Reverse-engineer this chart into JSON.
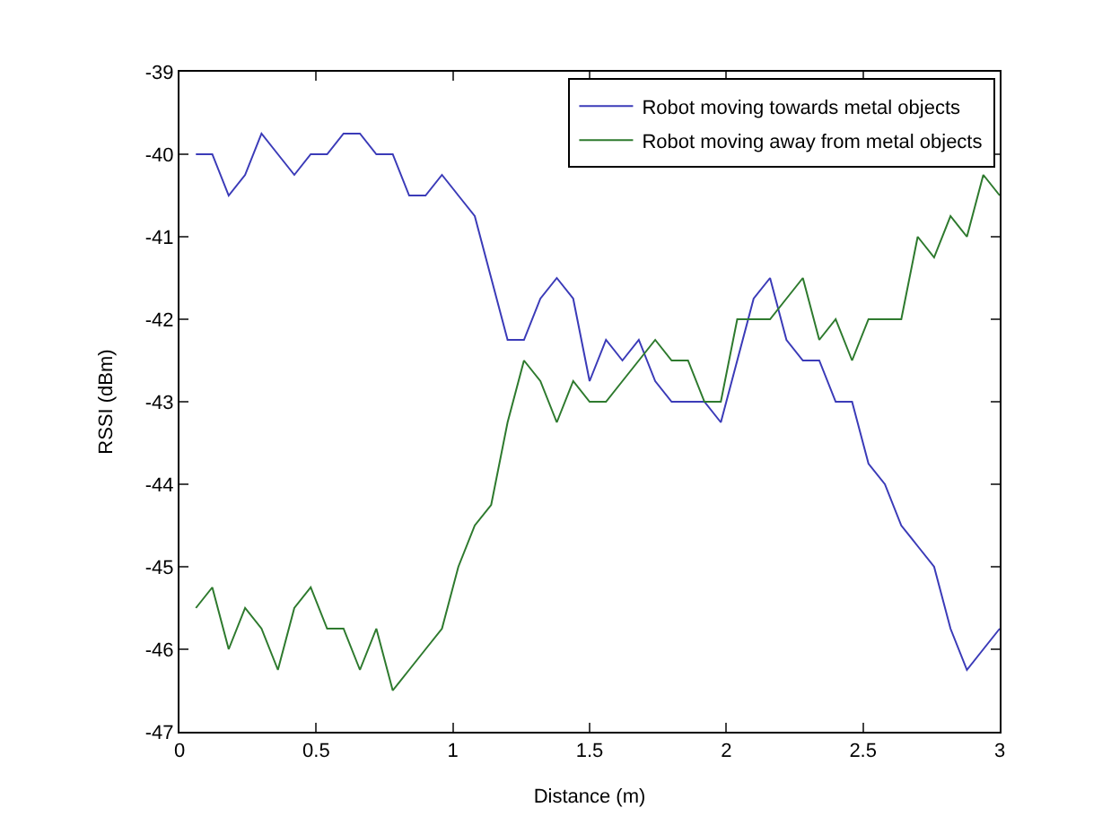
{
  "chart_data": {
    "type": "line",
    "xlabel": "Distance (m)",
    "ylabel": "RSSI (dBm)",
    "x": [
      0.06,
      0.12,
      0.18,
      0.24,
      0.3,
      0.36,
      0.42,
      0.48,
      0.54,
      0.6,
      0.66,
      0.72,
      0.78,
      0.84,
      0.9,
      0.96,
      1.02,
      1.08,
      1.14,
      1.2,
      1.26,
      1.32,
      1.38,
      1.44,
      1.5,
      1.56,
      1.62,
      1.68,
      1.74,
      1.8,
      1.86,
      1.92,
      1.98,
      2.04,
      2.1,
      2.16,
      2.22,
      2.28,
      2.34,
      2.4,
      2.46,
      2.52,
      2.58,
      2.64,
      2.7,
      2.76,
      2.82,
      2.88,
      2.94,
      3.0
    ],
    "series": [
      {
        "name": "Robot moving towards metal objects",
        "color": "#3b3bb8",
        "values": [
          -40,
          -40,
          -40.5,
          -40.25,
          -39.75,
          -40,
          -40.25,
          -40,
          -40,
          -39.75,
          -39.75,
          -40,
          -40,
          -40.5,
          -40.5,
          -40.25,
          -40.5,
          -40.75,
          -41.5,
          -42.25,
          -42.25,
          -41.75,
          -41.5,
          -41.75,
          -42.75,
          -42.25,
          -42.5,
          -42.25,
          -42.75,
          -43,
          -43,
          -43,
          -43.25,
          -42.5,
          -41.75,
          -41.5,
          -42.25,
          -42.5,
          -42.5,
          -43,
          -43,
          -43.75,
          -44,
          -44.5,
          -44.75,
          -45,
          -45.75,
          -46.25,
          -46,
          -45.75
        ]
      },
      {
        "name": "Robot moving away from metal objects",
        "color": "#2e7a2e",
        "values": [
          -45.5,
          -45.25,
          -46,
          -45.5,
          -45.75,
          -46.25,
          -45.5,
          -45.25,
          -45.75,
          -45.75,
          -46.25,
          -45.75,
          -46.5,
          -46.25,
          -46,
          -45.75,
          -45,
          -44.5,
          -44.25,
          -43.25,
          -42.5,
          -42.75,
          -43.25,
          -42.75,
          -43,
          -43,
          -42.75,
          -42.5,
          -42.25,
          -42.5,
          -42.5,
          -43,
          -43,
          -42,
          -42,
          -42,
          -41.75,
          -41.5,
          -42.25,
          -42,
          -42.5,
          -42,
          -42,
          -42,
          -41,
          -41.25,
          -40.75,
          -41,
          -40.25,
          -40.5
        ]
      }
    ],
    "xlim": [
      0,
      3
    ],
    "xticks": [
      0,
      0.5,
      1,
      1.5,
      2,
      2.5,
      3
    ],
    "ylim": [
      -47,
      -39
    ],
    "yticks": [
      -47,
      -46,
      -45,
      -44,
      -43,
      -42,
      -41,
      -40,
      -39
    ],
    "grid": false,
    "legend": "top right",
    "marker": "none",
    "line_style": "solid"
  }
}
